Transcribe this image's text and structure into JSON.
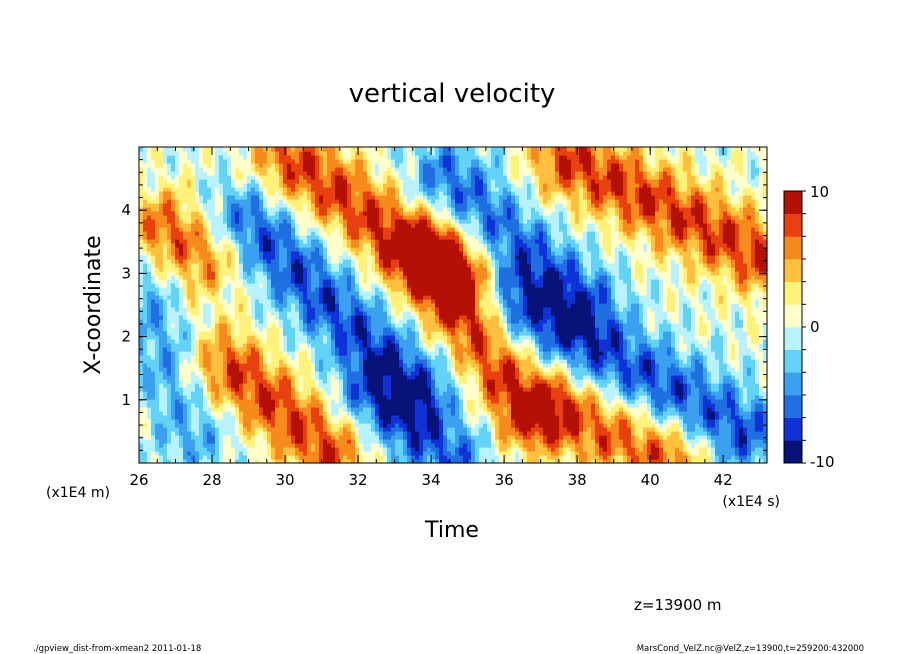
{
  "chart_data": {
    "type": "heatmap",
    "title": "vertical velocity",
    "xlabel": "Time",
    "ylabel": "X-coordinate",
    "x_unit": "(x1E4 s)",
    "y_unit": "(x1E4 m)",
    "xlim": [
      26,
      43.2
    ],
    "ylim": [
      0,
      5
    ],
    "xticks": [
      "26",
      "28",
      "30",
      "32",
      "34",
      "36",
      "38",
      "40",
      "42"
    ],
    "yticks": [
      "1",
      "2",
      "3",
      "4"
    ],
    "colorbar": {
      "range": [
        -10,
        10
      ],
      "tick_labels": [
        "10",
        "0",
        "-10"
      ],
      "colors": [
        "#08137a",
        "#0f32d8",
        "#1f6fe0",
        "#3aa0ef",
        "#62d2f7",
        "#b8f2ff",
        "#ffffcc",
        "#fff27a",
        "#ffbf3f",
        "#f68a1d",
        "#e8400f",
        "#b31106"
      ]
    },
    "bands": [
      {
        "x0": 26.8,
        "y0": 3.7,
        "x1": 27.7,
        "y1": 3.3,
        "sign": 1,
        "amp": 7
      },
      {
        "x0": 28.5,
        "y0": 1.5,
        "x1": 31.2,
        "y1": 0.2,
        "sign": 1,
        "amp": 8
      },
      {
        "x0": 30.2,
        "y0": 4.8,
        "x1": 34.5,
        "y1": 3.0,
        "sign": 1,
        "amp": 8
      },
      {
        "x0": 34.0,
        "y0": 3.2,
        "x1": 36.5,
        "y1": 0.9,
        "sign": 1,
        "amp": 8
      },
      {
        "x0": 37.8,
        "y0": 4.8,
        "x1": 43.0,
        "y1": 3.3,
        "sign": 1,
        "amp": 8
      },
      {
        "x0": 37.5,
        "y0": 0.8,
        "x1": 40.5,
        "y1": 0.1,
        "sign": 1,
        "amp": 7
      },
      {
        "x0": 29.0,
        "y0": 3.8,
        "x1": 33.5,
        "y1": 1.2,
        "sign": -1,
        "amp": 7
      },
      {
        "x0": 34.5,
        "y0": 4.5,
        "x1": 38.0,
        "y1": 2.6,
        "sign": -1,
        "amp": 6
      },
      {
        "x0": 36.5,
        "y0": 2.5,
        "x1": 42.5,
        "y1": 0.5,
        "sign": -1,
        "amp": 7
      },
      {
        "x0": 32.5,
        "y0": 1.0,
        "x1": 34.5,
        "y1": 0.1,
        "sign": -1,
        "amp": 6
      },
      {
        "x0": 26.2,
        "y0": 2.5,
        "x1": 27.5,
        "y1": 0.5,
        "sign": -1,
        "amp": 4
      }
    ],
    "annotations": {
      "level": "z=13900 m",
      "footer_left": "./gpview_dist-from-xmean2  2011-01-18",
      "footer_right": "MarsCond_VelZ.nc@VelZ,z=13900,t=259200:432000"
    }
  }
}
